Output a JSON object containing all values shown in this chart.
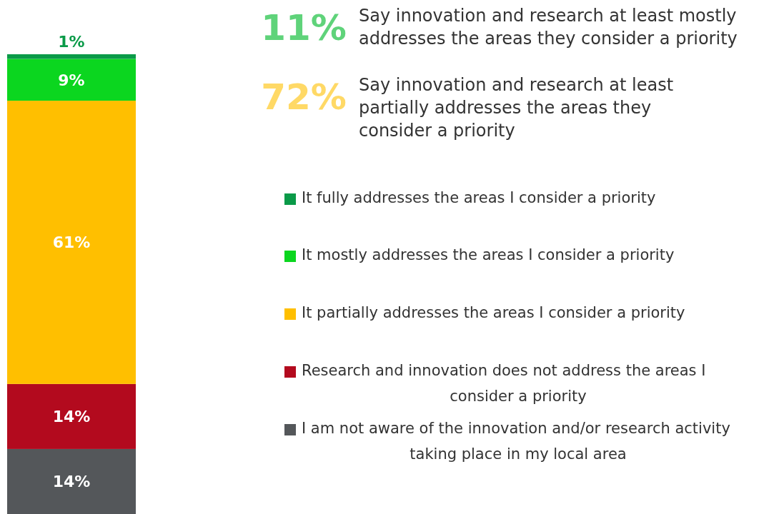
{
  "chart_data": {
    "type": "bar",
    "stacked": true,
    "categories": [
      null
    ],
    "legend": "right",
    "series": [
      {
        "name": "I am not aware of the innovation and/or research activity taking place in my local area",
        "color": "#54575a",
        "values": [
          14
        ],
        "value_labels": [
          "14%"
        ]
      },
      {
        "name": "Research and innovation does not address the areas I consider a priority",
        "color": "#b30a1e",
        "values": [
          14
        ],
        "value_labels": [
          "14%"
        ]
      },
      {
        "name": "It partially addresses the areas I consider a priority",
        "color": "#ffbf00",
        "values": [
          61
        ],
        "value_labels": [
          "61%"
        ]
      },
      {
        "name": "It mostly addresses the areas I consider a priority",
        "color": "#0bd61f",
        "values": [
          9
        ],
        "value_labels": [
          "9%"
        ]
      },
      {
        "name": "It fully addresses the areas I consider a priority",
        "color": "#0a9a48",
        "values": [
          1
        ],
        "value_labels": [
          "1%"
        ]
      }
    ],
    "annotations": [
      "11%",
      "Say innovation and research at least mostly addresses the areas they consider a priority",
      "72%",
      "Say innovation and research at least partially addresses the areas they consider a priority"
    ]
  }
}
